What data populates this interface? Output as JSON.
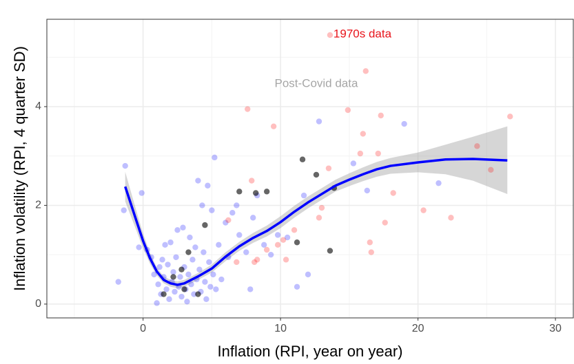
{
  "chart_data": {
    "type": "scatter",
    "x_label": "Inflation (RPI, year on year)",
    "y_label": "Inflation volatility (RPI, 4 quarter SD)",
    "xlim": [
      -7,
      31.3
    ],
    "ylim": [
      -0.28,
      5.77
    ],
    "xticks": [
      0,
      10,
      20,
      30
    ],
    "yticks": [
      0,
      2,
      4
    ],
    "grid": true,
    "minor_grid": true,
    "series": [
      {
        "color": "#0000ff",
        "opacity": 0.25,
        "x": [
          -1.3,
          -1.4,
          -0.1,
          -1.8,
          -0.3,
          0.3,
          0.6,
          0.8,
          1.0,
          1.1,
          1.2,
          1.3,
          1.4,
          1.5,
          1.6,
          1.7,
          1.8,
          1.9,
          2.0,
          2.1,
          2.2,
          2.3,
          2.4,
          2.5,
          2.6,
          2.7,
          2.8,
          2.9,
          3.0,
          3.1,
          3.2,
          3.3,
          3.4,
          3.5,
          3.6,
          3.7,
          3.8,
          3.9,
          4.0,
          4.1,
          4.2,
          4.3,
          4.4,
          4.5,
          4.6,
          4.7,
          4.8,
          4.9,
          5.0,
          5.1,
          5.2,
          5.3,
          5.5,
          5.7,
          6.0,
          6.2,
          6.5,
          6.8,
          7.0,
          7.5,
          7.8,
          8.0,
          8.3,
          8.8,
          9.3,
          9.8,
          10.5,
          11.2,
          11.7,
          12.0,
          12.8,
          15.3,
          19.0,
          21.5,
          16.3
        ],
        "y": [
          2.8,
          1.9,
          2.25,
          0.45,
          1.15,
          1.1,
          0.95,
          0.6,
          0.02,
          0.4,
          0.75,
          0.2,
          0.9,
          0.55,
          1.2,
          0.3,
          0.8,
          0.1,
          1.25,
          0.45,
          0.65,
          0.25,
          0.95,
          1.5,
          0.35,
          0.55,
          0.15,
          1.55,
          0.75,
          0.3,
          0.05,
          0.6,
          1.35,
          0.4,
          0.9,
          0.2,
          1.15,
          0.5,
          2.5,
          0.7,
          0.25,
          2.0,
          1.05,
          0.45,
          0.1,
          2.4,
          0.85,
          0.35,
          1.9,
          0.6,
          2.97,
          0.3,
          1.2,
          0.5,
          1.65,
          0.95,
          1.85,
          2.0,
          1.4,
          1.05,
          0.3,
          1.75,
          2.2,
          1.2,
          1.0,
          1.4,
          1.35,
          0.35,
          2.2,
          0.6,
          3.7,
          2.85,
          3.65,
          2.45,
          2.3
        ]
      },
      {
        "color": "#ff0000",
        "opacity": 0.25,
        "x": [
          7.6,
          7.9,
          8.1,
          8.3,
          9.0,
          9.5,
          9.8,
          10.2,
          10.4,
          6.2,
          6.8,
          11.0,
          12.8,
          13.0,
          13.5,
          14.9,
          15.8,
          16.0,
          16.2,
          16.5,
          16.6,
          17.1,
          17.3,
          17.6,
          18.2,
          20.4,
          22.4,
          24.3,
          25.3,
          26.7,
          13.6
        ],
        "y": [
          3.95,
          2.5,
          0.85,
          0.9,
          1.1,
          3.6,
          1.2,
          1.3,
          0.9,
          1.7,
          0.85,
          1.5,
          1.75,
          1.95,
          2.75,
          3.93,
          3.05,
          3.45,
          4.72,
          1.25,
          1.05,
          3.05,
          3.82,
          1.65,
          2.25,
          1.9,
          1.75,
          3.2,
          2.72,
          3.8,
          5.45
        ]
      },
      {
        "color": "#000000",
        "opacity": 0.6,
        "x": [
          1.5,
          2.8,
          3.3,
          3.0,
          4.5,
          7.0,
          8.2,
          9.0,
          11.2,
          11.6,
          12.6,
          13.9,
          13.6,
          2.2,
          4.0
        ],
        "y": [
          0.2,
          0.7,
          1.05,
          0.3,
          1.6,
          2.28,
          2.25,
          2.28,
          1.25,
          2.93,
          2.62,
          2.35,
          1.08,
          0.55,
          0.2
        ]
      }
    ],
    "smooth": {
      "color": "#0000ff",
      "band_color": "#999999",
      "x": [
        -1.3,
        -0.5,
        0,
        0.5,
        1,
        1.5,
        2,
        2.5,
        3,
        4,
        5,
        6,
        7,
        8,
        9,
        10,
        11,
        12,
        13,
        14,
        15,
        16,
        17,
        18,
        20,
        22,
        24,
        26.5
      ],
      "y": [
        2.38,
        1.7,
        1.28,
        0.93,
        0.66,
        0.49,
        0.42,
        0.39,
        0.42,
        0.56,
        0.72,
        0.96,
        1.17,
        1.34,
        1.48,
        1.66,
        1.87,
        2.06,
        2.23,
        2.4,
        2.52,
        2.63,
        2.73,
        2.8,
        2.87,
        2.93,
        2.94,
        2.91
      ],
      "lower": [
        2.08,
        1.5,
        1.13,
        0.82,
        0.58,
        0.42,
        0.35,
        0.32,
        0.35,
        0.49,
        0.64,
        0.87,
        1.08,
        1.24,
        1.37,
        1.54,
        1.75,
        1.94,
        2.11,
        2.28,
        2.39,
        2.49,
        2.58,
        2.64,
        2.67,
        2.63,
        2.5,
        2.23
      ],
      "upper": [
        2.68,
        1.9,
        1.43,
        1.04,
        0.74,
        0.56,
        0.49,
        0.46,
        0.49,
        0.63,
        0.8,
        1.05,
        1.26,
        1.44,
        1.59,
        1.78,
        1.99,
        2.18,
        2.35,
        2.52,
        2.65,
        2.77,
        2.88,
        2.96,
        3.07,
        3.23,
        3.39,
        3.6
      ]
    },
    "annotations": [
      {
        "text": "1970s data",
        "x": 13.85,
        "y": 5.46,
        "color": "#e8141b",
        "anchor": "start"
      },
      {
        "text": "Post-Covid data",
        "x": 12.6,
        "y": 4.46,
        "color": "#a6a6a6",
        "anchor": "middle"
      }
    ]
  }
}
